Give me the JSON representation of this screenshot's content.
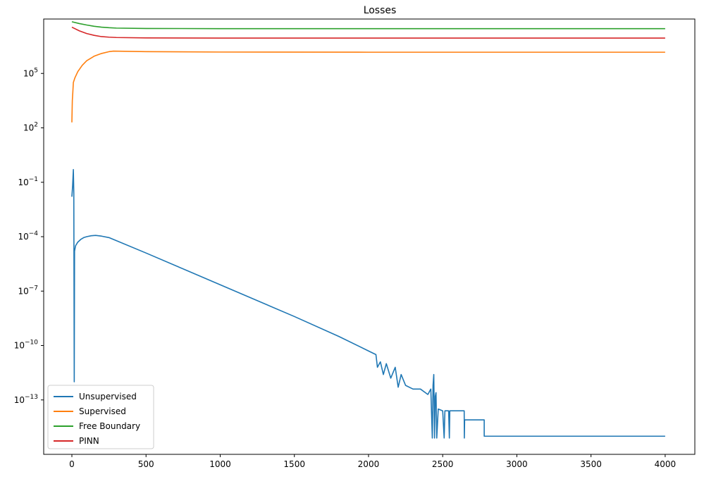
{
  "chart_data": {
    "type": "line",
    "title": "Losses",
    "xlabel": "",
    "ylabel": "",
    "yscale": "log",
    "xlim": [
      -190,
      4200
    ],
    "ylim_exp": [
      -16,
      8
    ],
    "x_ticks": [
      0,
      500,
      1000,
      1500,
      2000,
      2500,
      3000,
      3500,
      4000
    ],
    "x_tick_labels": [
      "0",
      "500",
      "1000",
      "1500",
      "2000",
      "2500",
      "3000",
      "3500",
      "4000"
    ],
    "y_ticks_exp": [
      -13,
      -10,
      -7,
      -4,
      -1,
      2,
      5
    ],
    "y_tick_labels": [
      {
        "base": "10",
        "exp": "−13"
      },
      {
        "base": "10",
        "exp": "−10"
      },
      {
        "base": "10",
        "exp": "−7"
      },
      {
        "base": "10",
        "exp": "−4"
      },
      {
        "base": "10",
        "exp": "−1"
      },
      {
        "base": "10",
        "exp": "2"
      },
      {
        "base": "10",
        "exp": "5"
      }
    ],
    "grid": false,
    "legend_position": "lower-left",
    "series": [
      {
        "name": "Unsupervised",
        "color": "#1f77b4",
        "points_log10": [
          [
            0,
            -1.8
          ],
          [
            5,
            -1.2
          ],
          [
            10,
            -0.3
          ],
          [
            13,
            -1.6
          ],
          [
            15,
            -8.6
          ],
          [
            16,
            -12.0
          ],
          [
            18,
            -4.8
          ],
          [
            25,
            -4.5
          ],
          [
            40,
            -4.3
          ],
          [
            60,
            -4.15
          ],
          [
            80,
            -4.05
          ],
          [
            100,
            -4.0
          ],
          [
            130,
            -3.95
          ],
          [
            160,
            -3.93
          ],
          [
            200,
            -3.97
          ],
          [
            250,
            -4.05
          ],
          [
            280,
            -4.15
          ],
          [
            500,
            -4.9
          ],
          [
            1000,
            -6.65
          ],
          [
            1500,
            -8.4
          ],
          [
            1800,
            -9.5
          ],
          [
            2000,
            -10.3
          ],
          [
            2050,
            -10.5
          ],
          [
            2060,
            -11.2
          ],
          [
            2080,
            -10.9
          ],
          [
            2100,
            -11.6
          ],
          [
            2120,
            -11.0
          ],
          [
            2150,
            -11.8
          ],
          [
            2180,
            -11.2
          ],
          [
            2200,
            -12.3
          ],
          [
            2220,
            -11.6
          ],
          [
            2250,
            -12.2
          ],
          [
            2300,
            -12.4
          ],
          [
            2350,
            -12.4
          ],
          [
            2400,
            -12.7
          ],
          [
            2420,
            -12.4
          ],
          [
            2430,
            -15.1
          ],
          [
            2435,
            -12.2
          ],
          [
            2440,
            -11.6
          ],
          [
            2445,
            -15.1
          ],
          [
            2450,
            -12.8
          ],
          [
            2455,
            -12.6
          ],
          [
            2460,
            -15.1
          ],
          [
            2470,
            -13.5
          ],
          [
            2500,
            -13.6
          ],
          [
            2510,
            -15.1
          ],
          [
            2515,
            -13.6
          ],
          [
            2540,
            -13.6
          ],
          [
            2545,
            -15.1
          ],
          [
            2548,
            -13.6
          ],
          [
            2645,
            -13.6
          ],
          [
            2646,
            -15.1
          ],
          [
            2648,
            -14.1
          ],
          [
            2780,
            -14.1
          ],
          [
            2780,
            -15.0
          ],
          [
            4000,
            -15.0
          ]
        ]
      },
      {
        "name": "Supervised",
        "color": "#ff7f0e",
        "points_log10": [
          [
            0,
            2.3
          ],
          [
            3,
            3.5
          ],
          [
            6,
            3.9
          ],
          [
            10,
            4.5
          ],
          [
            20,
            4.75
          ],
          [
            40,
            5.1
          ],
          [
            70,
            5.45
          ],
          [
            100,
            5.7
          ],
          [
            150,
            5.95
          ],
          [
            200,
            6.1
          ],
          [
            250,
            6.2
          ],
          [
            280,
            6.23
          ],
          [
            500,
            6.2
          ],
          [
            1000,
            6.18
          ],
          [
            2000,
            6.17
          ],
          [
            3000,
            6.17
          ],
          [
            4000,
            6.17
          ]
        ]
      },
      {
        "name": "Free Boundary",
        "color": "#2ca02c",
        "points_log10": [
          [
            0,
            7.85
          ],
          [
            50,
            7.75
          ],
          [
            100,
            7.67
          ],
          [
            150,
            7.6
          ],
          [
            200,
            7.55
          ],
          [
            250,
            7.52
          ],
          [
            300,
            7.5
          ],
          [
            500,
            7.48
          ],
          [
            1000,
            7.47
          ],
          [
            2000,
            7.47
          ],
          [
            3000,
            7.47
          ],
          [
            4000,
            7.47
          ]
        ]
      },
      {
        "name": "PINN",
        "color": "#d62728",
        "points_log10": [
          [
            0,
            7.55
          ],
          [
            50,
            7.35
          ],
          [
            100,
            7.2
          ],
          [
            150,
            7.1
          ],
          [
            200,
            7.03
          ],
          [
            250,
            7.0
          ],
          [
            300,
            6.98
          ],
          [
            500,
            6.96
          ],
          [
            1000,
            6.95
          ],
          [
            2000,
            6.95
          ],
          [
            3000,
            6.95
          ],
          [
            4000,
            6.95
          ]
        ]
      }
    ]
  }
}
